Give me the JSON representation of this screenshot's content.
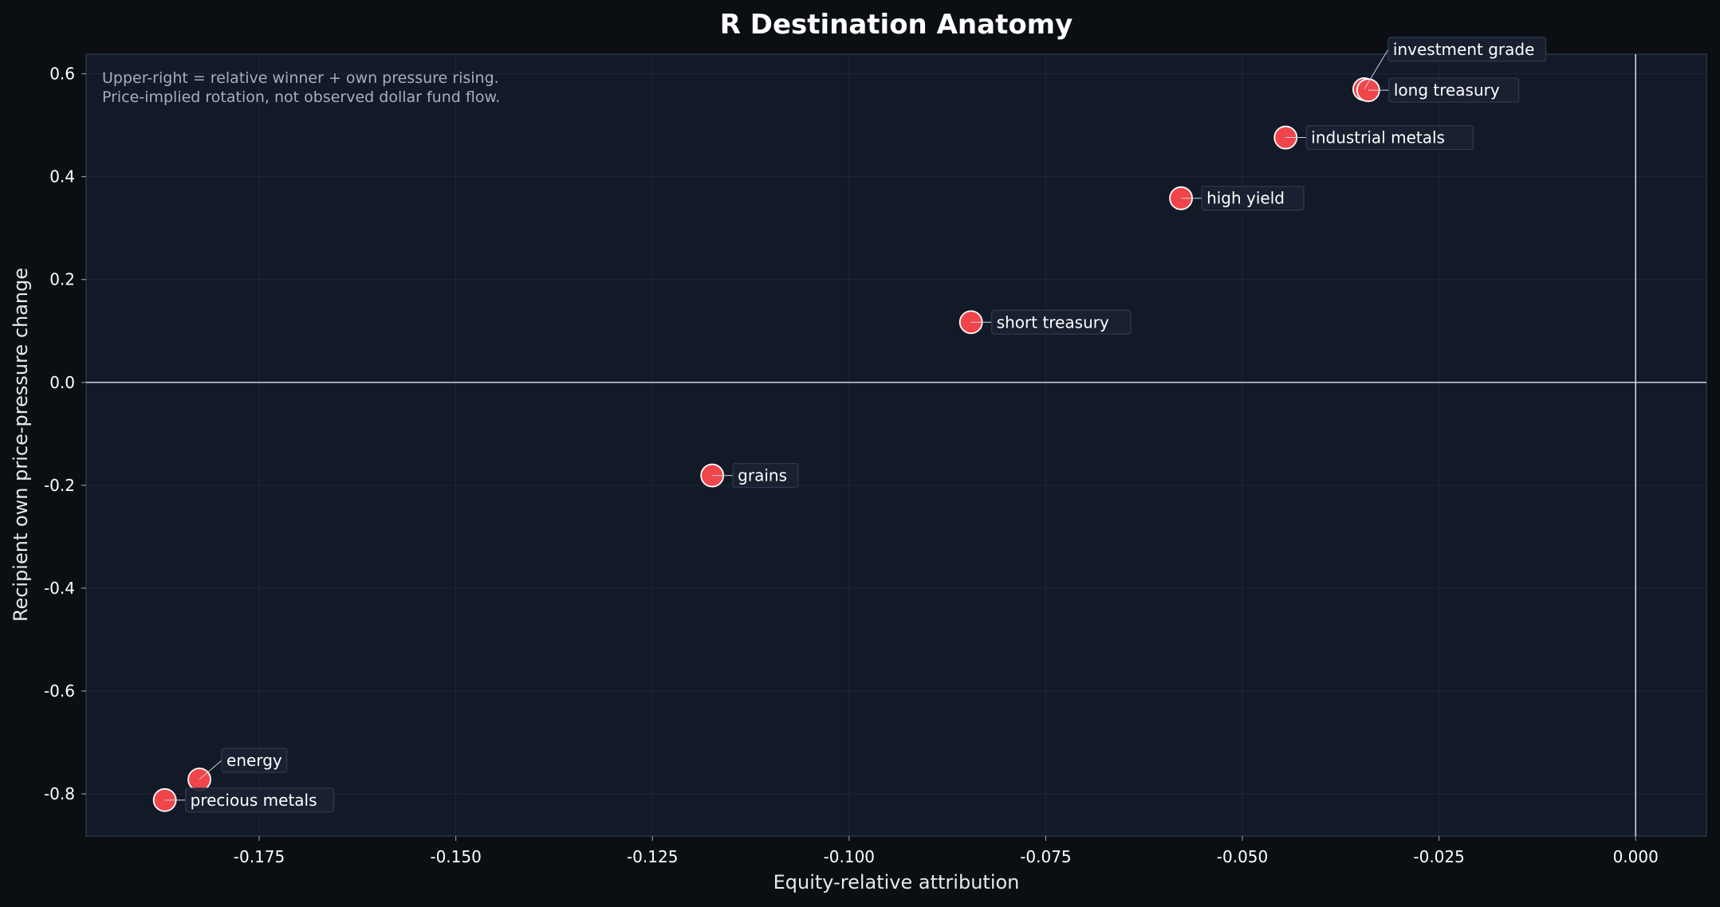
{
  "chart_data": {
    "type": "scatter",
    "title": "R Destination Anatomy",
    "xlabel": "Equity-relative attribution",
    "ylabel": "Recipient own price-pressure change",
    "xlim": [
      -0.197,
      0.009
    ],
    "ylim": [
      -0.882,
      0.638
    ],
    "xticks": [
      -0.175,
      -0.15,
      -0.125,
      -0.1,
      -0.075,
      -0.05,
      -0.025,
      0.0
    ],
    "xtick_labels": [
      "-0.175",
      "-0.150",
      "-0.125",
      "-0.100",
      "-0.075",
      "-0.050",
      "-0.025",
      "0.000"
    ],
    "yticks": [
      0.6,
      0.4,
      0.2,
      0.0,
      -0.2,
      -0.4,
      -0.6,
      -0.8
    ],
    "ytick_labels": [
      "0.6",
      "0.4",
      "0.2",
      "0.0",
      "-0.2",
      "-0.4",
      "-0.6",
      "-0.8"
    ],
    "grid": true,
    "reference_lines": {
      "x": 0.0,
      "y": 0.0
    },
    "annotation_lines": [
      "Upper-right = relative winner + own pressure rising.",
      "Price-implied rotation, not observed dollar fund flow."
    ],
    "marker_color": "#f0454b",
    "points": [
      {
        "label": "investment grade",
        "x": -0.0345,
        "y": 0.57
      },
      {
        "label": "long treasury",
        "x": -0.034,
        "y": 0.568
      },
      {
        "label": "industrial metals",
        "x": -0.0445,
        "y": 0.476
      },
      {
        "label": "high yield",
        "x": -0.0578,
        "y": 0.358
      },
      {
        "label": "short treasury",
        "x": -0.0845,
        "y": 0.117
      },
      {
        "label": "grains",
        "x": -0.1174,
        "y": -0.181
      },
      {
        "label": "energy",
        "x": -0.1826,
        "y": -0.772
      },
      {
        "label": "precious metals",
        "x": -0.187,
        "y": -0.812
      }
    ]
  },
  "colors": {
    "background": "#0b0f14",
    "plot_background": "#121927",
    "grid": "#1e2737",
    "reference_line": "#c9d2e3",
    "axis_frame": "#2a3547",
    "marker": "#f0454b",
    "marker_edge": "#ffffff",
    "label_box": "#1a2232",
    "label_box_edge": "#2f3b50"
  }
}
